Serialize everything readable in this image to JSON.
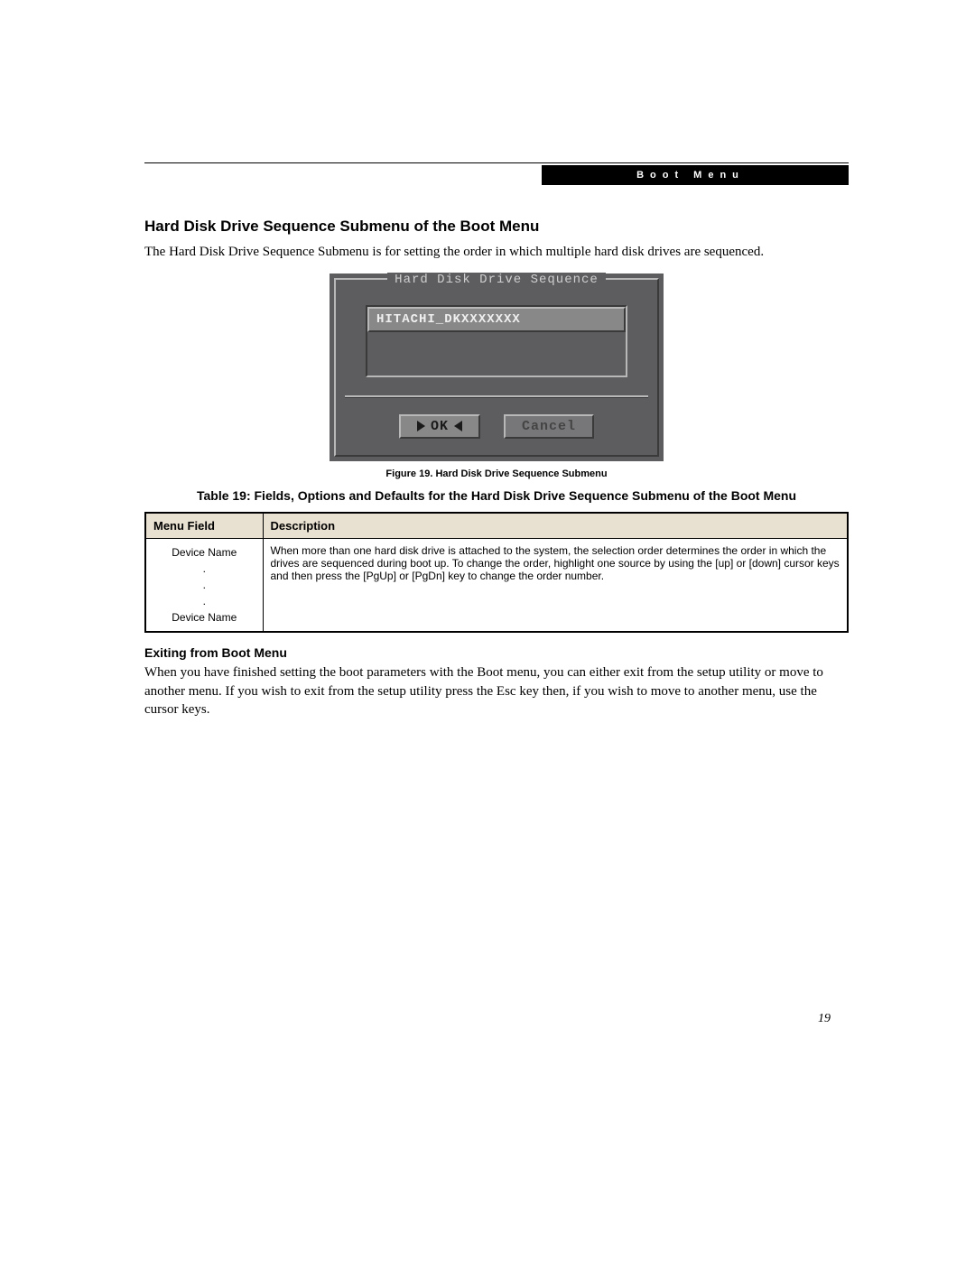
{
  "header": {
    "section_label": "Boot Menu"
  },
  "section1": {
    "title": "Hard Disk Drive Sequence Submenu of the Boot Menu",
    "intro": "The Hard Disk Drive Sequence Submenu is for setting the order in which multiple hard disk drives are sequenced."
  },
  "bios": {
    "dialog_title": "Hard Disk Drive Sequence",
    "selected_item": "HITACHI_DKXXXXXXX",
    "ok_label": "OK",
    "cancel_label": "Cancel",
    "colors": {
      "panel_bg": "#5d5d60",
      "raised_bg": "#888888",
      "light_edge": "#b8b8b8",
      "dark_edge": "#3a3a3a",
      "text_light": "#cfcfcf",
      "text_dark": "#1a1a1a"
    }
  },
  "figure": {
    "caption": "Figure 19.  Hard Disk Drive Sequence Submenu"
  },
  "table": {
    "caption": "Table 19: Fields, Options and Defaults for the Hard Disk Drive Sequence Submenu of the Boot Menu",
    "columns": [
      "Menu Field",
      "Description"
    ],
    "header_bg": "#e8e0d0",
    "rows": [
      {
        "field_lines": [
          "Device Name",
          ".",
          ".",
          ".",
          "Device Name"
        ],
        "description": "When more than one hard disk drive is attached to the system, the selection order determines the order in which the drives are sequenced during boot up. To change the order, highlight one source by using the [up] or [down] cursor keys and then press the [PgUp] or [PgDn] key to change the order number."
      }
    ]
  },
  "section2": {
    "title": "Exiting from Boot Menu",
    "body": "When you have finished setting the boot parameters with the Boot menu, you can either exit from the setup utility or move to another menu. If you wish to exit from the setup utility press the Esc key then, if you wish to move to another menu, use the cursor keys."
  },
  "page_number": "19"
}
